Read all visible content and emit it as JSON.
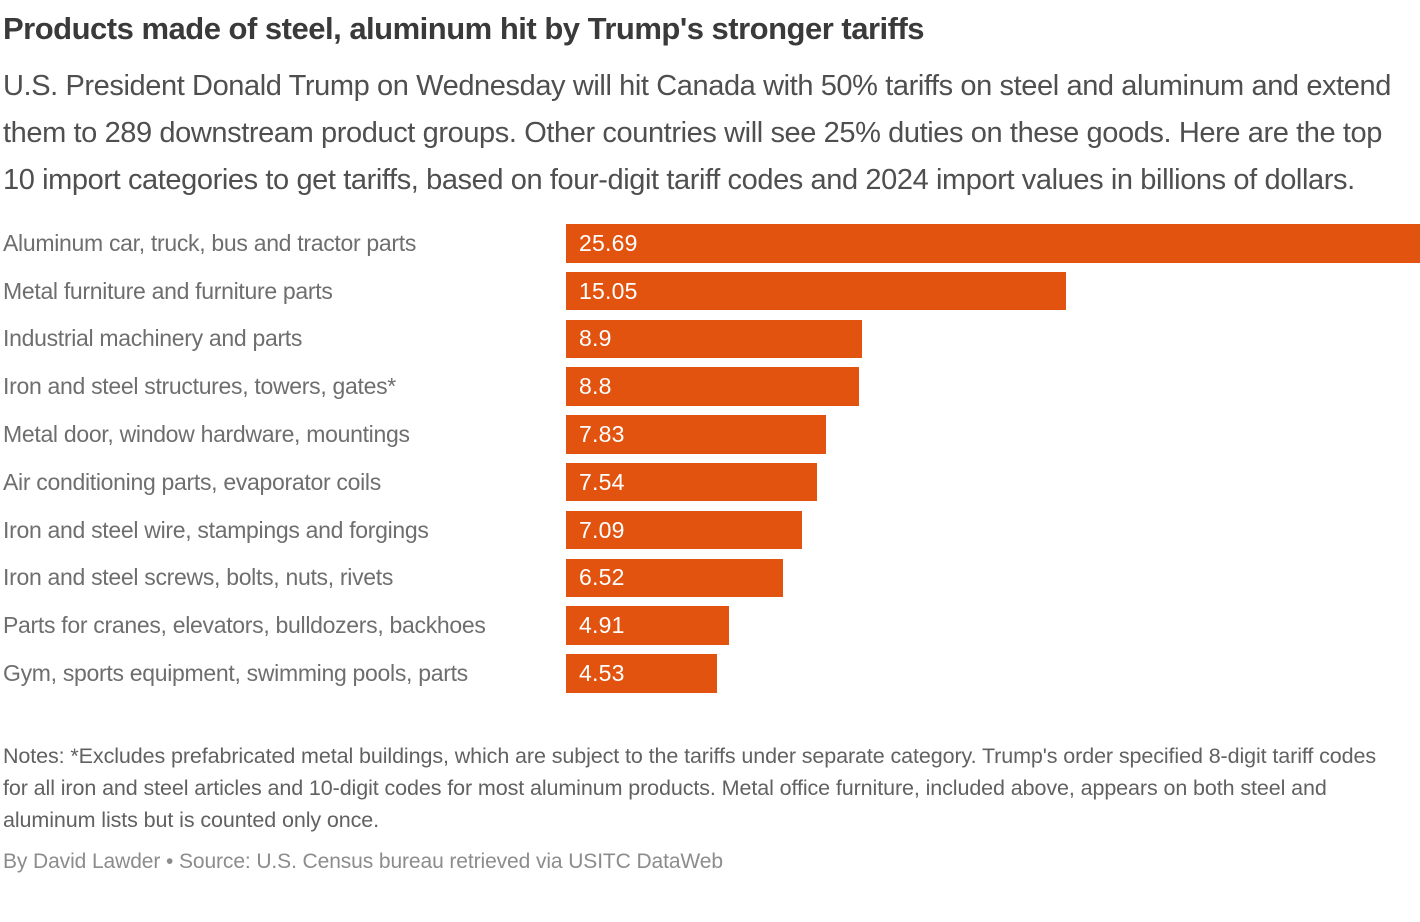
{
  "header": {
    "title": "Products made of steel, aluminum hit by Trump's stronger tariffs",
    "subtitle": "U.S. President Donald Trump on Wednesday will hit Canada with 50% tariffs on steel and aluminum and extend them to 289 downstream product groups. Other countries will see 25% duties on these goods. Here are the top 10 import categories to get tariffs, based on four-digit tariff codes and 2024 import values in billions of dollars."
  },
  "chart_data": {
    "type": "bar",
    "orientation": "horizontal",
    "title": "Products made of steel, aluminum hit by Trump's stronger tariffs",
    "xlabel": "",
    "ylabel": "",
    "xlim": [
      0,
      25.69
    ],
    "grid": false,
    "legend": false,
    "units": "billions of dollars (2024 import values)",
    "bar_color": "#e2530f",
    "category_label_color": "#6e6e6e",
    "value_label_color": "#ffffff",
    "categories": [
      "Aluminum car, truck, bus and tractor parts",
      "Metal furniture and furniture parts",
      "Industrial machinery and parts",
      "Iron and steel structures, towers, gates*",
      "Metal door, window hardware, mountings",
      "Air conditioning parts, evaporator coils",
      "Iron and steel wire, stampings and forgings",
      "Iron and steel screws, bolts, nuts, rivets",
      "Parts for cranes, elevators, bulldozers, backhoes",
      "Gym, sports equipment, swimming pools, parts"
    ],
    "values": [
      25.69,
      15.05,
      8.9,
      8.8,
      7.83,
      7.54,
      7.09,
      6.52,
      4.91,
      4.53
    ],
    "value_labels": [
      "25.69",
      "15.05",
      "8.9",
      "8.8",
      "7.83",
      "7.54",
      "7.09",
      "6.52",
      "4.91",
      "4.53"
    ]
  },
  "footer": {
    "notes": "Notes: *Excludes prefabricated metal buildings, which are subject to the tariffs under separate category. Trump's order specified 8-digit tariff codes for all iron and steel articles and 10-digit codes for most aluminum products. Metal office furniture, included above, appears on both steel and aluminum lists but is counted only once.",
    "byline": "By David Lawder • Source: U.S. Census bureau retrieved via USITC DataWeb"
  }
}
